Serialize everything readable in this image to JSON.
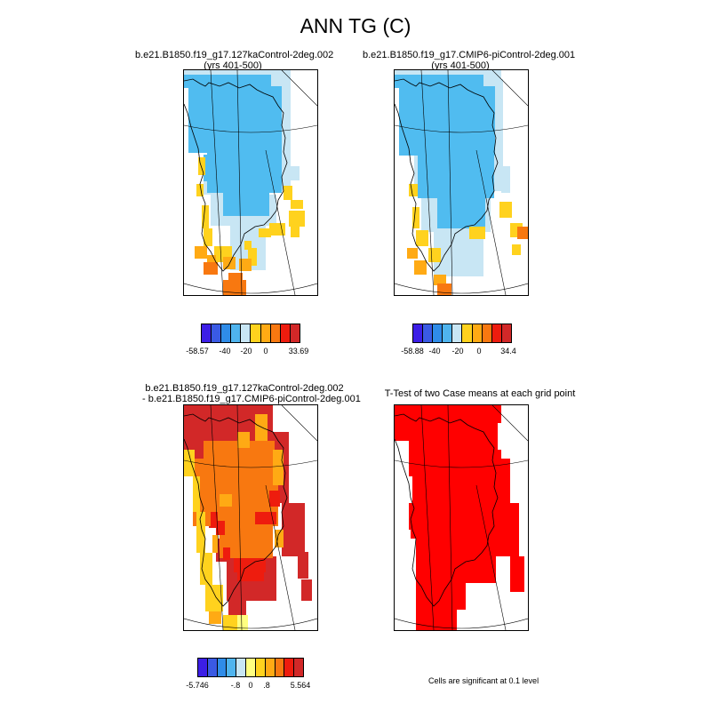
{
  "title": "ANN TG (C)",
  "panels": [
    {
      "title1": "b.e21.B1850.f19_g17.127kaControl-2deg.002",
      "title2": "(yrs 401-500)"
    },
    {
      "title1": "b.e21.B1850.f19_g17.CMIP6-piControl-2deg.001",
      "title2": "(yrs 401-500)"
    },
    {
      "title1": "b.e21.B1850.f19_g17.127kaControl-2deg.002",
      "title2": "- b.e21.B1850.f19_g17.CMIP6-piControl-2deg.001"
    },
    {
      "title1": "T-Test of two Case means at each grid point",
      "title2": ""
    }
  ],
  "colorbars": {
    "cb1": {
      "colors": [
        "#3c1ee6",
        "#3a5ae4",
        "#2f8ce8",
        "#4fb4ee",
        "#c8e6f4",
        "#ffd21e",
        "#ffaa14",
        "#f87810",
        "#ee1c0e",
        "#d22828"
      ],
      "labels": [
        "-58.57",
        "-40",
        "-20",
        "0",
        "33.69"
      ]
    },
    "cb2": {
      "colors": [
        "#3c1ee6",
        "#3a5ae4",
        "#2f8ce8",
        "#4fb4ee",
        "#c8e6f4",
        "#ffd21e",
        "#ffaa14",
        "#f87810",
        "#ee1c0e",
        "#d22828"
      ],
      "labels": [
        "-58.88",
        "-40",
        "-20",
        "0",
        "34.4"
      ]
    },
    "cb3": {
      "colors": [
        "#3c1ee6",
        "#3a5ae4",
        "#2f8ce8",
        "#4fb4ee",
        "#c8e6f4",
        "#ffff80",
        "#ffd21e",
        "#ffaa14",
        "#f87810",
        "#ee1c0e",
        "#d22828"
      ],
      "labels": [
        "-5.746",
        "-.8",
        "0",
        ".8",
        "5.564"
      ]
    }
  },
  "note": "Cells are significant at 0.1 level",
  "colors": {
    "light_blue": "#c8e6f4",
    "mid_blue": "#50bcf0",
    "yellow": "#ffd21e",
    "orange": "#ffaa14",
    "dark_orange": "#f87810",
    "red": "#ff0000",
    "dark_red": "#d22828",
    "pale_yellow": "#ffff80"
  }
}
